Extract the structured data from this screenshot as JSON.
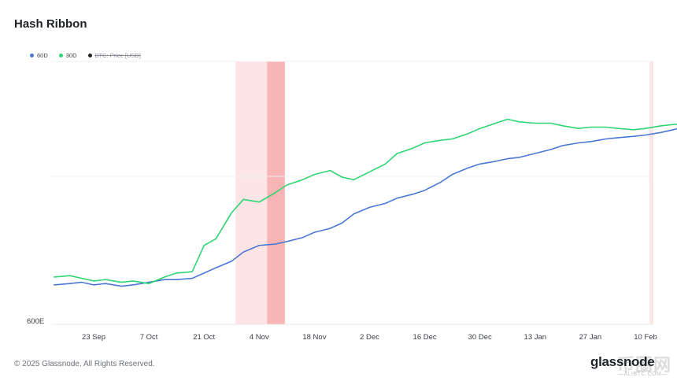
{
  "header": {
    "title": "Hash Ribbon"
  },
  "legend": {
    "items": [
      {
        "label": "60D",
        "color": "#4a78d4",
        "enabled": true
      },
      {
        "label": "30D",
        "color": "#2ed573",
        "enabled": true
      },
      {
        "label": "BTC: Price [USD]",
        "color": "#1f2328",
        "enabled": false
      }
    ]
  },
  "footer": {
    "copyright": "© 2025 Glassnode. All Rights Reserved.",
    "brand": "glassnode"
  },
  "watermark": {
    "text": "币圈网",
    "sub": "—ALIBTC.COM—"
  },
  "chart_data": {
    "type": "line",
    "title": "Hash Ribbon",
    "xlabel": "",
    "ylabel": "",
    "x_ticks": [
      "23 Sep",
      "7 Oct",
      "21 Oct",
      "4 Nov",
      "18 Nov",
      "2 Dec",
      "16 Dec",
      "30 Dec",
      "13 Jan",
      "27 Jan",
      "10 Feb"
    ],
    "y_ticks": [
      "600E"
    ],
    "legend_position": "top-left",
    "grid": true,
    "x_days": [
      -10,
      -6,
      -3,
      0,
      3,
      7,
      10,
      14,
      18,
      21,
      25,
      28,
      31,
      35,
      38,
      42,
      46,
      49,
      53,
      56,
      60,
      63,
      66,
      70,
      74,
      77,
      81,
      84,
      88,
      91,
      95,
      98,
      102,
      105,
      108,
      112,
      116,
      119,
      123,
      126,
      130,
      133,
      137,
      140,
      144,
      147,
      151,
      154,
      157
    ],
    "series": [
      {
        "name": "60D",
        "color": "#4a78d4",
        "values": [
          610,
          611,
          612,
          610,
          611,
          609,
          610,
          612,
          614,
          614,
          615,
          619,
          623,
          628,
          635,
          640,
          641,
          643,
          646,
          650,
          653,
          657,
          664,
          669,
          672,
          676,
          679,
          682,
          688,
          694,
          699,
          702,
          704,
          706,
          707,
          710,
          713,
          716,
          718,
          719,
          721,
          722,
          723,
          724,
          726,
          728,
          731,
          733,
          735
        ]
      },
      {
        "name": "30D",
        "color": "#2ed573",
        "values": [
          616,
          617,
          615,
          613,
          614,
          612,
          613,
          611,
          616,
          619,
          620,
          640,
          645,
          665,
          675,
          673,
          680,
          686,
          690,
          694,
          697,
          692,
          690,
          696,
          702,
          710,
          714,
          718,
          720,
          721,
          725,
          729,
          733,
          736,
          734,
          733,
          733,
          731,
          729,
          730,
          730,
          729,
          728,
          729,
          731,
          732,
          733,
          736,
          739
        ]
      }
    ],
    "y_range": [
      580,
      780
    ],
    "shaded_periods": [
      {
        "start": 36,
        "end": 44,
        "intensity": "light"
      },
      {
        "start": 44,
        "end": 48.5,
        "intensity": "strong"
      },
      {
        "start": 141,
        "end": 142,
        "intensity": "light"
      },
      {
        "start": 142,
        "end": 143,
        "intensity": "strong"
      },
      {
        "start": 143,
        "end": 144.5,
        "intensity": "light"
      },
      {
        "start": 144.5,
        "end": 146,
        "intensity": "light"
      },
      {
        "start": 146,
        "end": 148,
        "intensity": "strong"
      },
      {
        "start": 148,
        "end": 150.5,
        "intensity": "light"
      },
      {
        "start": 150.5,
        "end": 152.5,
        "intensity": "strong"
      }
    ]
  }
}
